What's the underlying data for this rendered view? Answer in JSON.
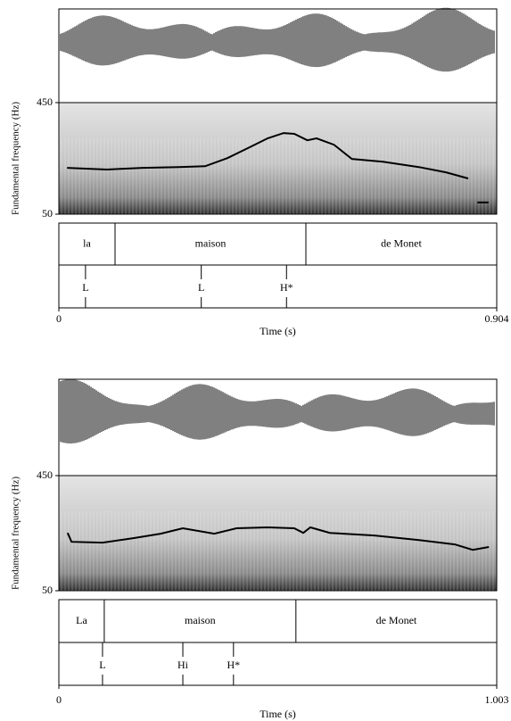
{
  "chart_data": [
    {
      "type": "line",
      "ylabel": "Fundamental frequency (Hz)",
      "xlabel": "Time (s)",
      "xlim": [
        0,
        0.904
      ],
      "xticks": [
        0,
        0.904
      ],
      "ylim": [
        50,
        450
      ],
      "yticks": [
        50,
        450
      ],
      "color": "#000000",
      "x": [
        0.017,
        0.099,
        0.173,
        0.247,
        0.302,
        0.348,
        0.394,
        0.431,
        0.464,
        0.486,
        0.513,
        0.532,
        0.568,
        0.605,
        0.669,
        0.743,
        0.799,
        0.845,
        0.855,
        0.864,
        0.887
      ],
      "values": [
        216,
        210,
        216,
        219,
        222,
        251,
        290,
        322,
        341,
        338,
        315,
        322,
        299,
        248,
        238,
        219,
        200,
        178,
        null,
        92,
        92
      ],
      "words": [
        "la",
        "maison",
        "de Monet"
      ],
      "word_boundaries": [
        0.116,
        0.51
      ],
      "tones": [
        {
          "label": "L",
          "time": 0.055
        },
        {
          "label": "L",
          "time": 0.294
        },
        {
          "label": "H*",
          "time": 0.47
        }
      ]
    },
    {
      "type": "line",
      "ylabel": "Fundamental frequency (Hz)",
      "xlabel": "Time (s)",
      "xlim": [
        0,
        1.003
      ],
      "xticks": [
        0,
        1.003
      ],
      "ylim": [
        50,
        450
      ],
      "yticks": [
        50,
        450
      ],
      "color": "#000000",
      "x": [
        0.02,
        0.029,
        0.1,
        0.172,
        0.233,
        0.284,
        0.356,
        0.407,
        0.478,
        0.539,
        0.56,
        0.576,
        0.621,
        0.723,
        0.825,
        0.907,
        0.948,
        0.985
      ],
      "values": [
        251,
        220,
        217,
        233,
        248,
        267,
        248,
        267,
        270,
        267,
        251,
        270,
        251,
        242,
        226,
        211,
        192,
        202
      ],
      "words": [
        "La",
        "maison",
        "de Monet"
      ],
      "word_boundaries": [
        0.104,
        0.543
      ],
      "tones": [
        {
          "label": "L",
          "time": 0.1
        },
        {
          "label": "Hi",
          "time": 0.284
        },
        {
          "label": "H*",
          "time": 0.4
        }
      ]
    }
  ]
}
